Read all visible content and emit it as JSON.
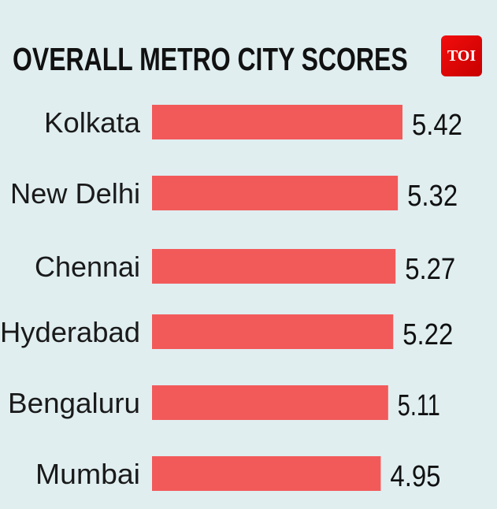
{
  "chart_data": {
    "type": "bar",
    "orientation": "horizontal",
    "title": "OVERALL METRO CITY SCORES",
    "categories": [
      "Kolkata",
      "New Delhi",
      "Chennai",
      "Hyderabad",
      "Bengaluru",
      "Mumbai"
    ],
    "values": [
      5.42,
      5.32,
      5.27,
      5.22,
      5.11,
      4.95
    ],
    "value_labels": [
      "5.42",
      "5.32",
      "5.27",
      "5.22",
      "5.11",
      "4.95"
    ],
    "xlabel": "",
    "ylabel": "",
    "xlim": [
      0,
      5.42
    ],
    "grid": false,
    "bar_color": "#f25a5a",
    "background_color": "#e0eef0"
  },
  "logo": {
    "text": "TOI",
    "color": "#e00b0b"
  }
}
